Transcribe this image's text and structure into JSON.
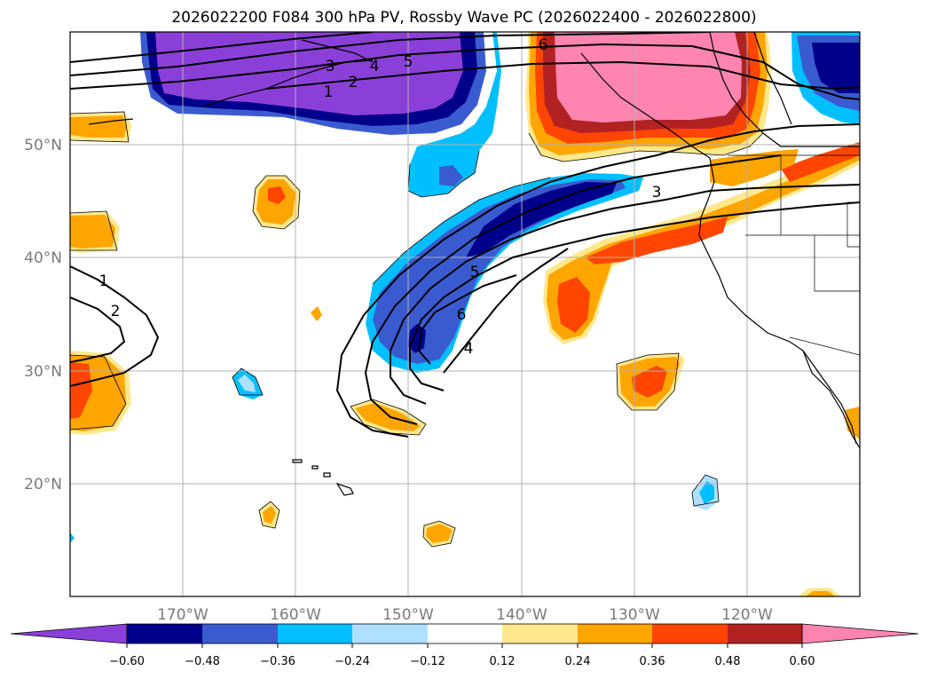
{
  "title": "2026022200 F084 300 hPa PV, Rossby Wave PC (2026022400 - 2026022800)",
  "colors": {
    "purple": "#8B3FD9",
    "navy": "#00008B",
    "royal": "#3A5BD0",
    "sky": "#00BFFF",
    "pale_blue": "#B0E0FF",
    "white": "#FFFFFF",
    "pale_yellow": "#FFE88C",
    "orange": "#FFA500",
    "red_orange": "#FF4500",
    "dark_red": "#B22222",
    "pink": "#FF85B0",
    "grid": "#b0b0b0"
  },
  "axes": {
    "lon_labels": [
      "170°W",
      "160°W",
      "150°W",
      "140°W",
      "130°W",
      "120°W"
    ],
    "lat_labels": [
      "50°N",
      "40°N",
      "30°N",
      "20°N"
    ]
  },
  "colorbar": {
    "ticks": [
      "−0.60",
      "−0.48",
      "−0.36",
      "−0.24",
      "−0.12",
      "0.12",
      "0.24",
      "0.36",
      "0.48",
      "0.60"
    ]
  },
  "contour_labels": [
    "6",
    "5",
    "4",
    "3",
    "2",
    "1",
    "3",
    "5",
    "6",
    "4",
    "1",
    "2"
  ]
}
